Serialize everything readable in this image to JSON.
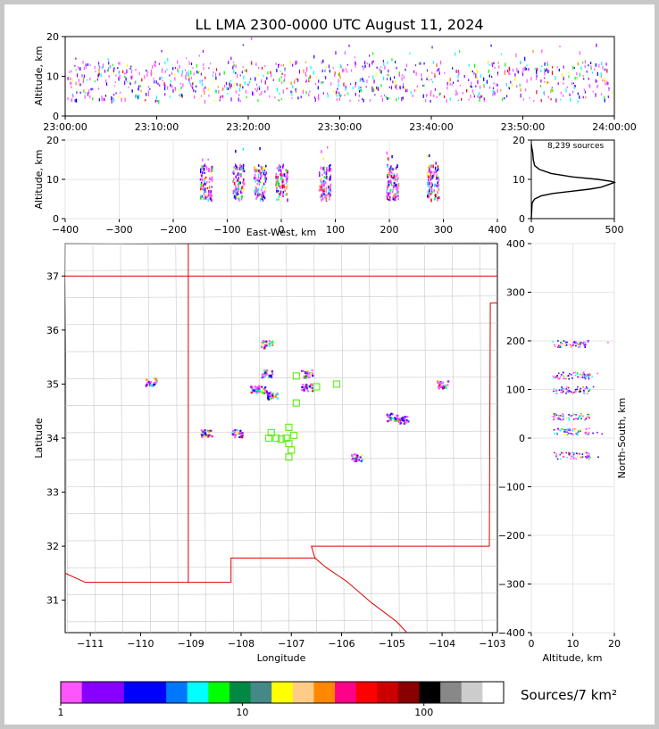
{
  "title": "LL LMA 2300-0000 UTC August 11, 2024",
  "colorbar": {
    "label": "Sources/7 km²",
    "tick_labels": [
      "1",
      "10",
      "100"
    ],
    "colors": [
      "#ff55ff",
      "#8800ff",
      "#8800ff",
      "#0000ff",
      "#0000ff",
      "#0077ff",
      "#00ffff",
      "#00ff00",
      "#008844",
      "#448888",
      "#ffff00",
      "#ffcc88",
      "#ff8800",
      "#ff0088",
      "#ff0000",
      "#cc0000",
      "#880000",
      "#000000",
      "#888888",
      "#cccccc",
      "#ffffff"
    ]
  },
  "chart_data": [
    {
      "id": "time-height",
      "type": "scatter",
      "xlabel": "",
      "ylabel": "Altitude, km",
      "ylim": [
        0,
        20
      ],
      "yticks": [
        "0",
        "10",
        "20"
      ],
      "xticks": [
        "23:00:00",
        "23:10:00",
        "23:20:00",
        "23:30:00",
        "23:40:00",
        "23:50:00",
        "24:00:00"
      ]
    },
    {
      "id": "ew-height",
      "type": "scatter",
      "xlabel": "East-West, km",
      "ylabel": "Altitude, km",
      "xlim": [
        -400,
        400
      ],
      "ylim": [
        0,
        20
      ],
      "xticks": [
        "−400",
        "−300",
        "−200",
        "−100",
        "0",
        "100",
        "200",
        "300",
        "400"
      ],
      "yticks": [
        "0",
        "10",
        "20"
      ],
      "clusters_x_km": [
        -140,
        -80,
        -40,
        0,
        80,
        205,
        280
      ]
    },
    {
      "id": "altitude-histogram",
      "type": "line",
      "annotation": "8,239 sources",
      "xlim": [
        0,
        500
      ],
      "ylim": [
        0,
        20
      ],
      "xticks": [
        "0",
        "500"
      ],
      "yticks": [
        "0",
        "10",
        "20"
      ],
      "profile": [
        [
          0,
          0
        ],
        [
          5,
          4
        ],
        [
          20,
          5
        ],
        [
          60,
          5.8
        ],
        [
          130,
          6.4
        ],
        [
          250,
          7
        ],
        [
          350,
          7.5
        ],
        [
          420,
          8
        ],
        [
          460,
          8.6
        ],
        [
          500,
          9.2
        ],
        [
          480,
          9.5
        ],
        [
          400,
          10
        ],
        [
          250,
          10.6
        ],
        [
          120,
          11.5
        ],
        [
          50,
          12.5
        ],
        [
          20,
          13.5
        ],
        [
          12,
          15
        ],
        [
          8,
          17
        ],
        [
          3,
          18
        ],
        [
          0,
          19
        ]
      ]
    },
    {
      "id": "plan-view",
      "type": "scatter",
      "xlabel": "Longitude",
      "ylabel": "Latitude",
      "xlim": [
        -111.5,
        -102.9
      ],
      "ylim": [
        30.4,
        37.6
      ],
      "xticks": [
        "−111",
        "−110",
        "−109",
        "−108",
        "−107",
        "−106",
        "−105",
        "−104",
        "−103"
      ],
      "yticks": [
        "31",
        "32",
        "33",
        "34",
        "35",
        "36",
        "37"
      ],
      "stations": [
        [
          -106.9,
          35.15
        ],
        [
          -106.5,
          34.95
        ],
        [
          -106.1,
          35.0
        ],
        [
          -106.9,
          34.65
        ],
        [
          -107.4,
          34.1
        ],
        [
          -107.45,
          34.0
        ],
        [
          -107.3,
          34.0
        ],
        [
          -107.1,
          34.0
        ],
        [
          -106.95,
          34.05
        ],
        [
          -107.05,
          34.2
        ],
        [
          -107.05,
          33.9
        ],
        [
          -107.0,
          33.78
        ],
        [
          -107.05,
          33.65
        ],
        [
          -107.2,
          33.98
        ]
      ],
      "clusters": [
        [
          -107.5,
          35.2
        ],
        [
          -107.6,
          34.9
        ],
        [
          -107.4,
          34.8
        ],
        [
          -107.75,
          34.92
        ],
        [
          -106.7,
          35.2
        ],
        [
          -106.7,
          34.95
        ],
        [
          -108.7,
          34.1
        ],
        [
          -108.1,
          34.1
        ],
        [
          -104.8,
          34.35
        ],
        [
          -105.0,
          34.4
        ],
        [
          -104.0,
          35.0
        ],
        [
          -109.8,
          35.05
        ],
        [
          -107.5,
          35.75
        ],
        [
          -105.7,
          33.65
        ]
      ]
    },
    {
      "id": "ns-height",
      "type": "scatter",
      "xlabel": "Altitude, km",
      "ylabel": "North-South, km",
      "xlim": [
        0,
        20
      ],
      "ylim": [
        -400,
        400
      ],
      "xticks": [
        "0",
        "10",
        "20"
      ],
      "yticks": [
        "400",
        "300",
        "200",
        "100",
        "0",
        "−100",
        "−200",
        "−300",
        "−400"
      ],
      "bands_ns_km": [
        195,
        130,
        100,
        45,
        15,
        -35
      ]
    }
  ]
}
